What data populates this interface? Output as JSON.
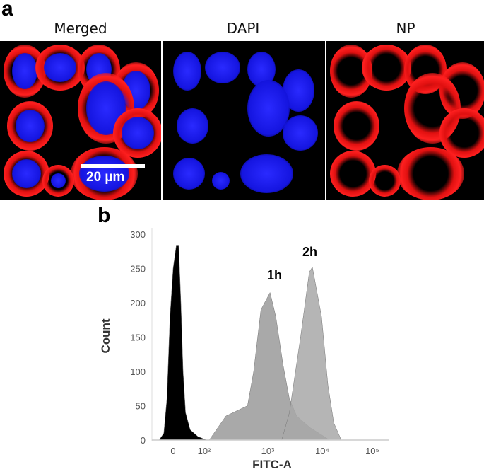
{
  "panel_a": {
    "label": "a",
    "columns": [
      "Merged",
      "DAPI",
      "NP"
    ],
    "scale_bar": "20 µm",
    "colors": {
      "nucleus": "#1a1aff",
      "nanoparticle": "#ff1a1a"
    }
  },
  "panel_b": {
    "label": "b"
  },
  "chart_data": {
    "type": "area",
    "title": "",
    "xlabel": "FITC-A",
    "ylabel": "Count",
    "x_scale": "biexponential",
    "xticks": [
      "0",
      "10^2",
      "10^3",
      "10^4",
      "10^5"
    ],
    "yticks": [
      0,
      50,
      100,
      150,
      200,
      250,
      300
    ],
    "ylim": [
      0,
      300
    ],
    "series": [
      {
        "color": "#000000",
        "x": [
          -45,
          -30,
          -20,
          -10,
          0,
          10,
          18,
          25,
          32,
          40,
          55,
          80,
          110
        ],
        "y": [
          0,
          10,
          60,
          180,
          250,
          283,
          283,
          200,
          100,
          40,
          15,
          5,
          0
        ]
      },
      {
        "name": "1h",
        "color": "#9a9a9a",
        "x": [
          120,
          220,
          480,
          600,
          780,
          1100,
          1400,
          1900,
          2500,
          3400,
          6000,
          11000,
          14000
        ],
        "y": [
          0,
          35,
          50,
          100,
          190,
          215,
          180,
          110,
          60,
          35,
          18,
          5,
          0
        ]
      },
      {
        "name": "2h",
        "color": "#a8a8a8",
        "x": [
          1800,
          2500,
          4000,
          5800,
          6600,
          9700,
          13000,
          17000,
          24000
        ],
        "y": [
          0,
          40,
          150,
          245,
          252,
          180,
          80,
          25,
          0
        ]
      }
    ]
  }
}
